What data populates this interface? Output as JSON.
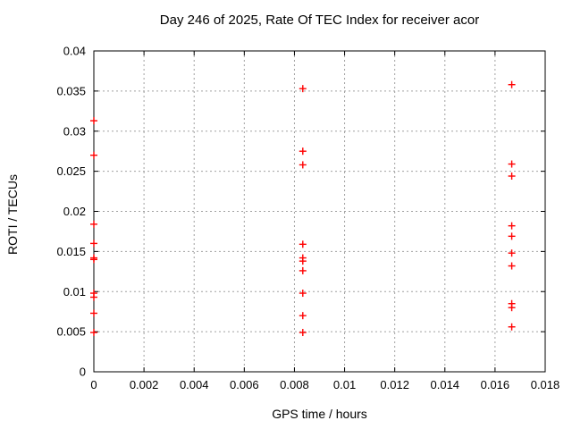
{
  "window": {
    "background": "#ffffff"
  },
  "colors": {
    "marker": "#ff0000",
    "grid": "#a0a0a0",
    "axis": "#000000",
    "text": "#000000"
  },
  "chart_data": {
    "type": "scatter",
    "title": "Day 246 of 2025, Rate Of TEC Index for receiver acor",
    "xlabel": "GPS time / hours",
    "ylabel": "ROTI / TECUs",
    "xlim": [
      0,
      0.018
    ],
    "ylim": [
      0,
      0.04
    ],
    "xticks": [
      0,
      0.002,
      0.004,
      0.006,
      0.008,
      0.01,
      0.012,
      0.014,
      0.016,
      0.018
    ],
    "xtick_labels": [
      "0",
      "0.002",
      "0.004",
      "0.006",
      "0.008",
      "0.01",
      "0.012",
      "0.014",
      "0.016",
      "0.018"
    ],
    "yticks": [
      0,
      0.005,
      0.01,
      0.015,
      0.02,
      0.025,
      0.03,
      0.035,
      0.04
    ],
    "ytick_labels": [
      "0",
      "0.005",
      "0.01",
      "0.015",
      "0.02",
      "0.025",
      "0.03",
      "0.035",
      "0.04"
    ],
    "grid": true,
    "legend": "none",
    "marker": {
      "shape": "plus",
      "color": "#ff0000",
      "size": 9
    },
    "series": [
      {
        "name": "ROTI",
        "points": [
          [
            0,
            0.0313
          ],
          [
            0,
            0.027
          ],
          [
            0,
            0.0184
          ],
          [
            0,
            0.016
          ],
          [
            0,
            0.0142
          ],
          [
            0,
            0.014
          ],
          [
            0,
            0.0098
          ],
          [
            0,
            0.0093
          ],
          [
            0,
            0.0073
          ],
          [
            0,
            0.0049
          ],
          [
            0.0083333,
            0.0353
          ],
          [
            0.0083333,
            0.0275
          ],
          [
            0.0083333,
            0.0258
          ],
          [
            0.0083333,
            0.0159
          ],
          [
            0.0083333,
            0.0142
          ],
          [
            0.0083333,
            0.0138
          ],
          [
            0.0083333,
            0.0126
          ],
          [
            0.0083333,
            0.0098
          ],
          [
            0.0083333,
            0.007
          ],
          [
            0.0083333,
            0.0049
          ],
          [
            0.0166667,
            0.0358
          ],
          [
            0.0166667,
            0.0259
          ],
          [
            0.0166667,
            0.0244
          ],
          [
            0.0166667,
            0.0182
          ],
          [
            0.0166667,
            0.0169
          ],
          [
            0.0166667,
            0.0148
          ],
          [
            0.0166667,
            0.0132
          ],
          [
            0.0166667,
            0.0085
          ],
          [
            0.0166667,
            0.008
          ],
          [
            0.0166667,
            0.0056
          ]
        ]
      }
    ]
  }
}
